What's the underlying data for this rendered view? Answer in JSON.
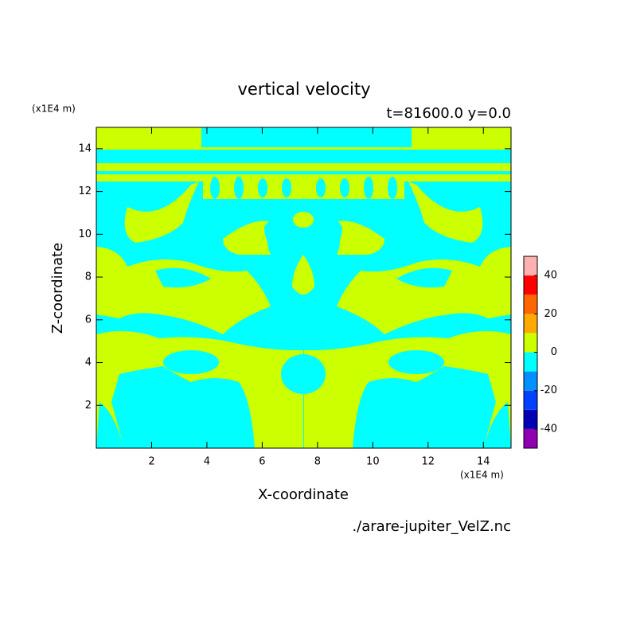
{
  "chart_data": {
    "type": "contour",
    "title": "vertical velocity",
    "subtitle": "t=81600.0 y=0.0",
    "x_label": "X-coordinate",
    "y_label": "Z-coordinate",
    "x_unit": "(x1E4 m)",
    "y_unit": "(x1E4 m)",
    "source": "./arare-jupiter_VelZ.nc",
    "xlim": [
      0,
      15
    ],
    "ylim": [
      0,
      15
    ],
    "xticks": [
      2,
      4,
      6,
      8,
      10,
      12,
      14
    ],
    "yticks": [
      2,
      4,
      6,
      8,
      10,
      12,
      14
    ],
    "colorbar": {
      "levels": [
        -50,
        -40,
        -30,
        -20,
        -10,
        0,
        10,
        20,
        30,
        40,
        50
      ],
      "colors": [
        "#9000b0",
        "#0000b4",
        "#0040ff",
        "#0090ff",
        "#00ffff",
        "#ccff00",
        "#ffaa00",
        "#ff6600",
        "#ff0000",
        "#ffb0b0"
      ],
      "ticks": [
        -40,
        -20,
        0,
        20,
        40
      ]
    }
  }
}
